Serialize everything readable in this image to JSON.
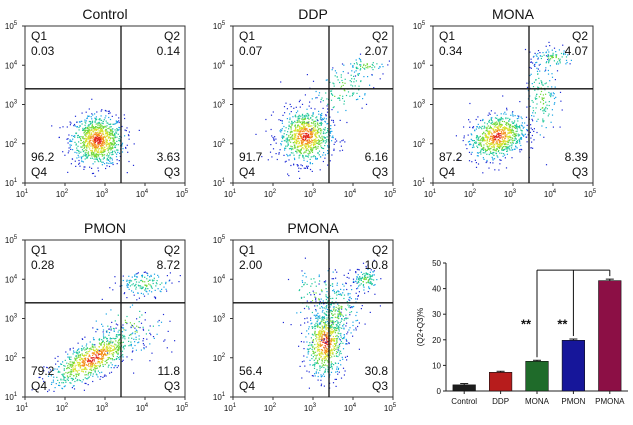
{
  "chart_data": [
    {
      "type": "scatter",
      "title": "Control",
      "axis_scale": "log10",
      "xlim": [
        10,
        100000
      ],
      "ylim": [
        10,
        100000
      ],
      "ticks": {
        "bases": [
          "10",
          "10",
          "10",
          "10",
          "10"
        ],
        "exponents": [
          "1",
          "2",
          "3",
          "4",
          "5"
        ]
      },
      "quadrants": [
        {
          "name": "Q1",
          "value": "0.03"
        },
        {
          "name": "Q2",
          "value": "0.14"
        },
        {
          "name": "Q3",
          "value": "3.63"
        },
        {
          "name": "Q4",
          "value": "96.2"
        }
      ]
    },
    {
      "type": "scatter",
      "title": "DDP",
      "axis_scale": "log10",
      "xlim": [
        10,
        100000
      ],
      "ylim": [
        10,
        100000
      ],
      "ticks": {
        "bases": [
          "10",
          "10",
          "10",
          "10",
          "10"
        ],
        "exponents": [
          "1",
          "2",
          "3",
          "4",
          "5"
        ]
      },
      "quadrants": [
        {
          "name": "Q1",
          "value": "0.07"
        },
        {
          "name": "Q2",
          "value": "2.07"
        },
        {
          "name": "Q3",
          "value": "6.16"
        },
        {
          "name": "Q4",
          "value": "91.7"
        }
      ]
    },
    {
      "type": "scatter",
      "title": "MONA",
      "axis_scale": "log10",
      "xlim": [
        10,
        100000
      ],
      "ylim": [
        10,
        100000
      ],
      "ticks": {
        "bases": [
          "10",
          "10",
          "10",
          "10",
          "10"
        ],
        "exponents": [
          "1",
          "2",
          "3",
          "4",
          "5"
        ]
      },
      "quadrants": [
        {
          "name": "Q1",
          "value": "0.34"
        },
        {
          "name": "Q2",
          "value": "4.07"
        },
        {
          "name": "Q3",
          "value": "8.39"
        },
        {
          "name": "Q4",
          "value": "87.2"
        }
      ]
    },
    {
      "type": "scatter",
      "title": "PMON",
      "axis_scale": "log10",
      "xlim": [
        10,
        100000
      ],
      "ylim": [
        10,
        100000
      ],
      "ticks": {
        "bases": [
          "10",
          "10",
          "10",
          "10",
          "10"
        ],
        "exponents": [
          "1",
          "2",
          "3",
          "4",
          "5"
        ]
      },
      "quadrants": [
        {
          "name": "Q1",
          "value": "0.28"
        },
        {
          "name": "Q2",
          "value": "8.72"
        },
        {
          "name": "Q3",
          "value": "11.8"
        },
        {
          "name": "Q4",
          "value": "79.2"
        }
      ]
    },
    {
      "type": "scatter",
      "title": "PMONA",
      "axis_scale": "log10",
      "xlim": [
        10,
        100000
      ],
      "ylim": [
        10,
        100000
      ],
      "ticks": {
        "bases": [
          "10",
          "10",
          "10",
          "10",
          "10"
        ],
        "exponents": [
          "1",
          "2",
          "3",
          "4",
          "5"
        ]
      },
      "quadrants": [
        {
          "name": "Q1",
          "value": "2.00"
        },
        {
          "name": "Q2",
          "value": "10.8"
        },
        {
          "name": "Q3",
          "value": "30.8"
        },
        {
          "name": "Q4",
          "value": "56.4"
        }
      ]
    },
    {
      "type": "bar",
      "title": "",
      "ylabel": "(Q2+Q3)%",
      "xlabel": "",
      "ylim": [
        0,
        50
      ],
      "yticks": [
        "0",
        "10",
        "20",
        "30",
        "40",
        "50"
      ],
      "categories": [
        "Control",
        "DDP",
        "MONA",
        "PMON",
        "PMONA"
      ],
      "values": [
        2.4,
        7.3,
        11.6,
        19.8,
        43.1
      ],
      "errors": [
        0.5,
        0.4,
        0.4,
        0.5,
        0.6
      ],
      "colors": [
        "#1c1c1c",
        "#b71c1c",
        "#1f6b2a",
        "#16169a",
        "#8c0f45"
      ],
      "significance": [
        {
          "from": "MONA",
          "to": "PMONA",
          "label": "**"
        },
        {
          "from": "PMON",
          "to": "PMONA",
          "label": "**"
        }
      ]
    }
  ]
}
